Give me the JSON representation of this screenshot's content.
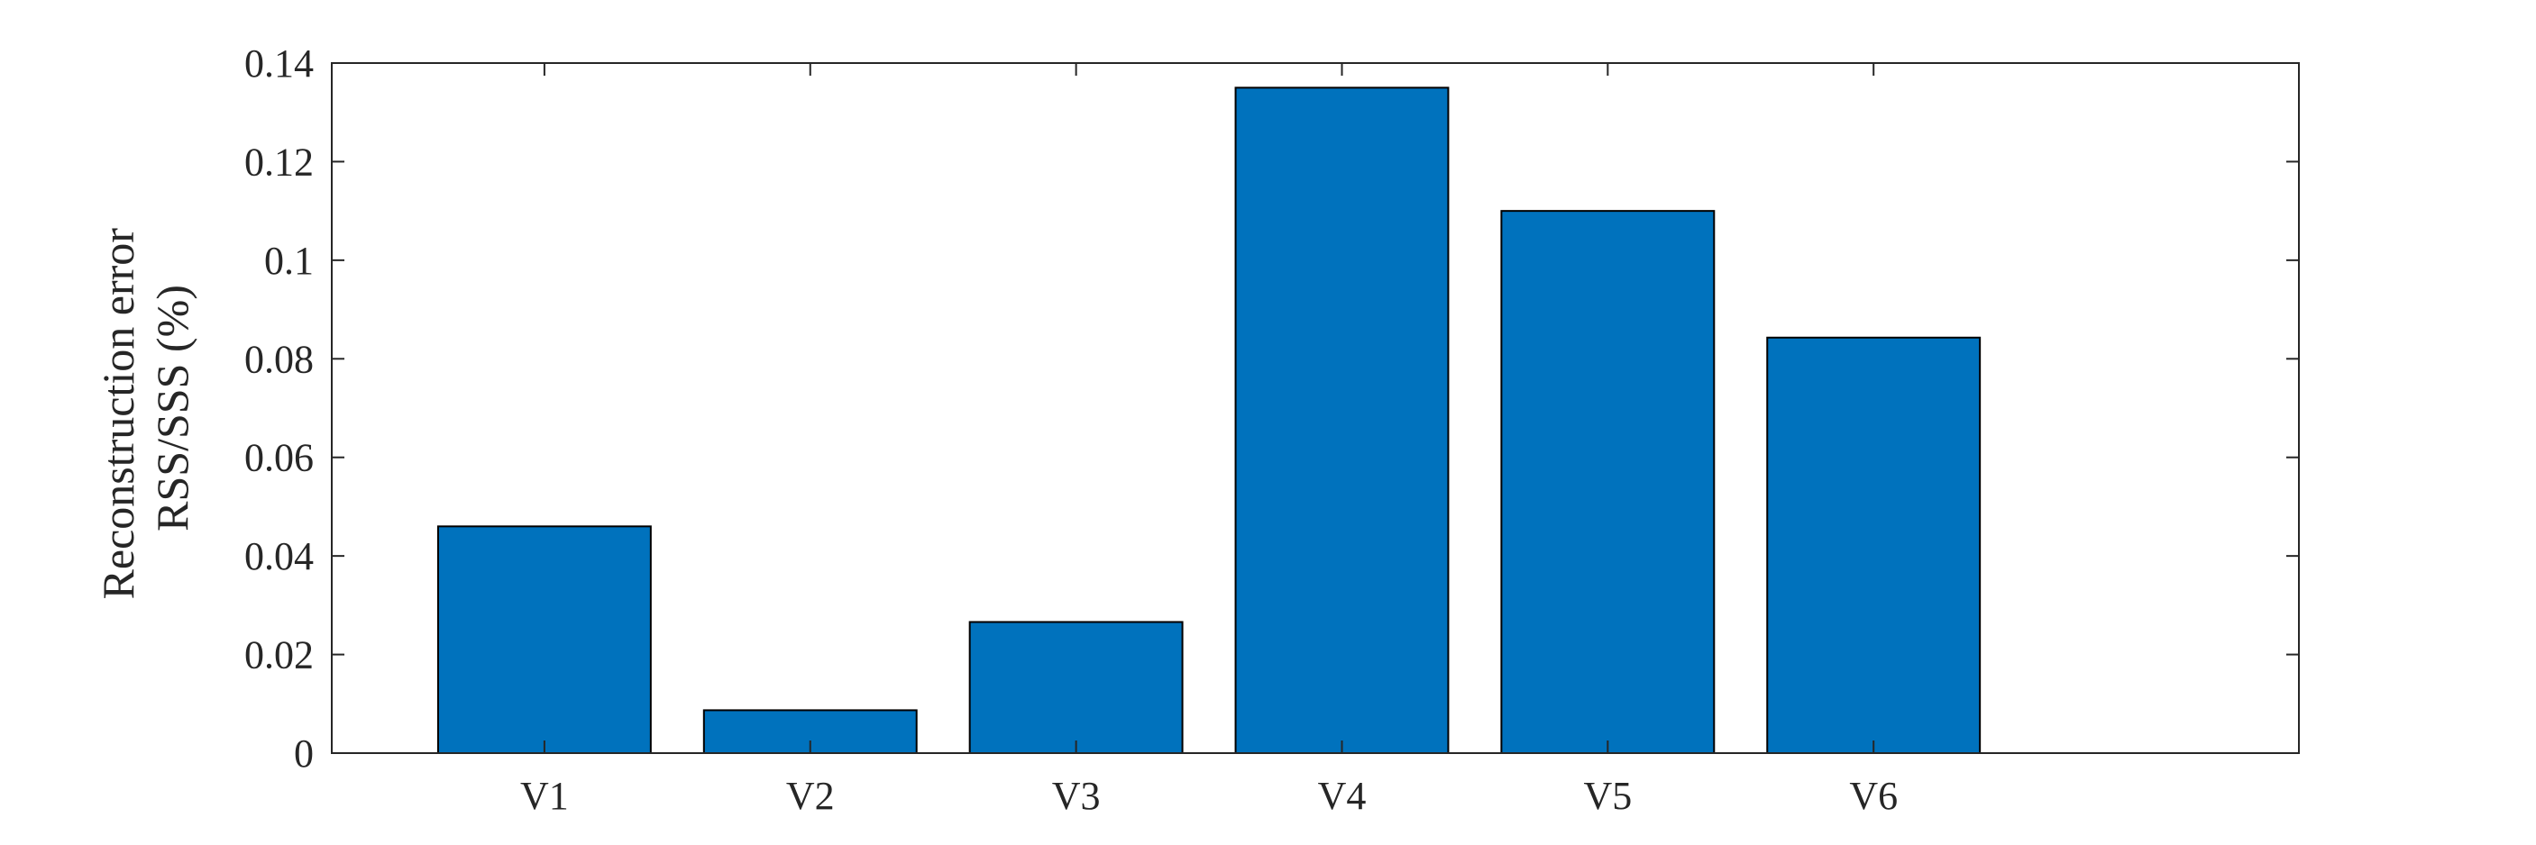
{
  "chart_data": {
    "type": "bar",
    "categories": [
      "V1",
      "V2",
      "V3",
      "V4",
      "V5",
      "V6"
    ],
    "values": [
      0.046,
      0.0087,
      0.0266,
      0.135,
      0.11,
      0.0843
    ],
    "ylabel": [
      "Reconstruction error",
      "RSS/SSS (%)"
    ],
    "xlabel": "",
    "title": "",
    "ylim": [
      0,
      0.14
    ],
    "xlim": [
      -0.8,
      6.6
    ],
    "yticks": [
      0,
      0.02,
      0.04,
      0.06,
      0.08,
      0.1,
      0.12,
      0.14
    ],
    "ytick_labels": [
      "0",
      "0.02",
      "0.04",
      "0.06",
      "0.08",
      "0.1",
      "0.12",
      "0.14"
    ],
    "bar_color": "#0072BD",
    "bar_edge_color": "#000000",
    "axis_color": "#262626",
    "grid": false,
    "box": true
  }
}
